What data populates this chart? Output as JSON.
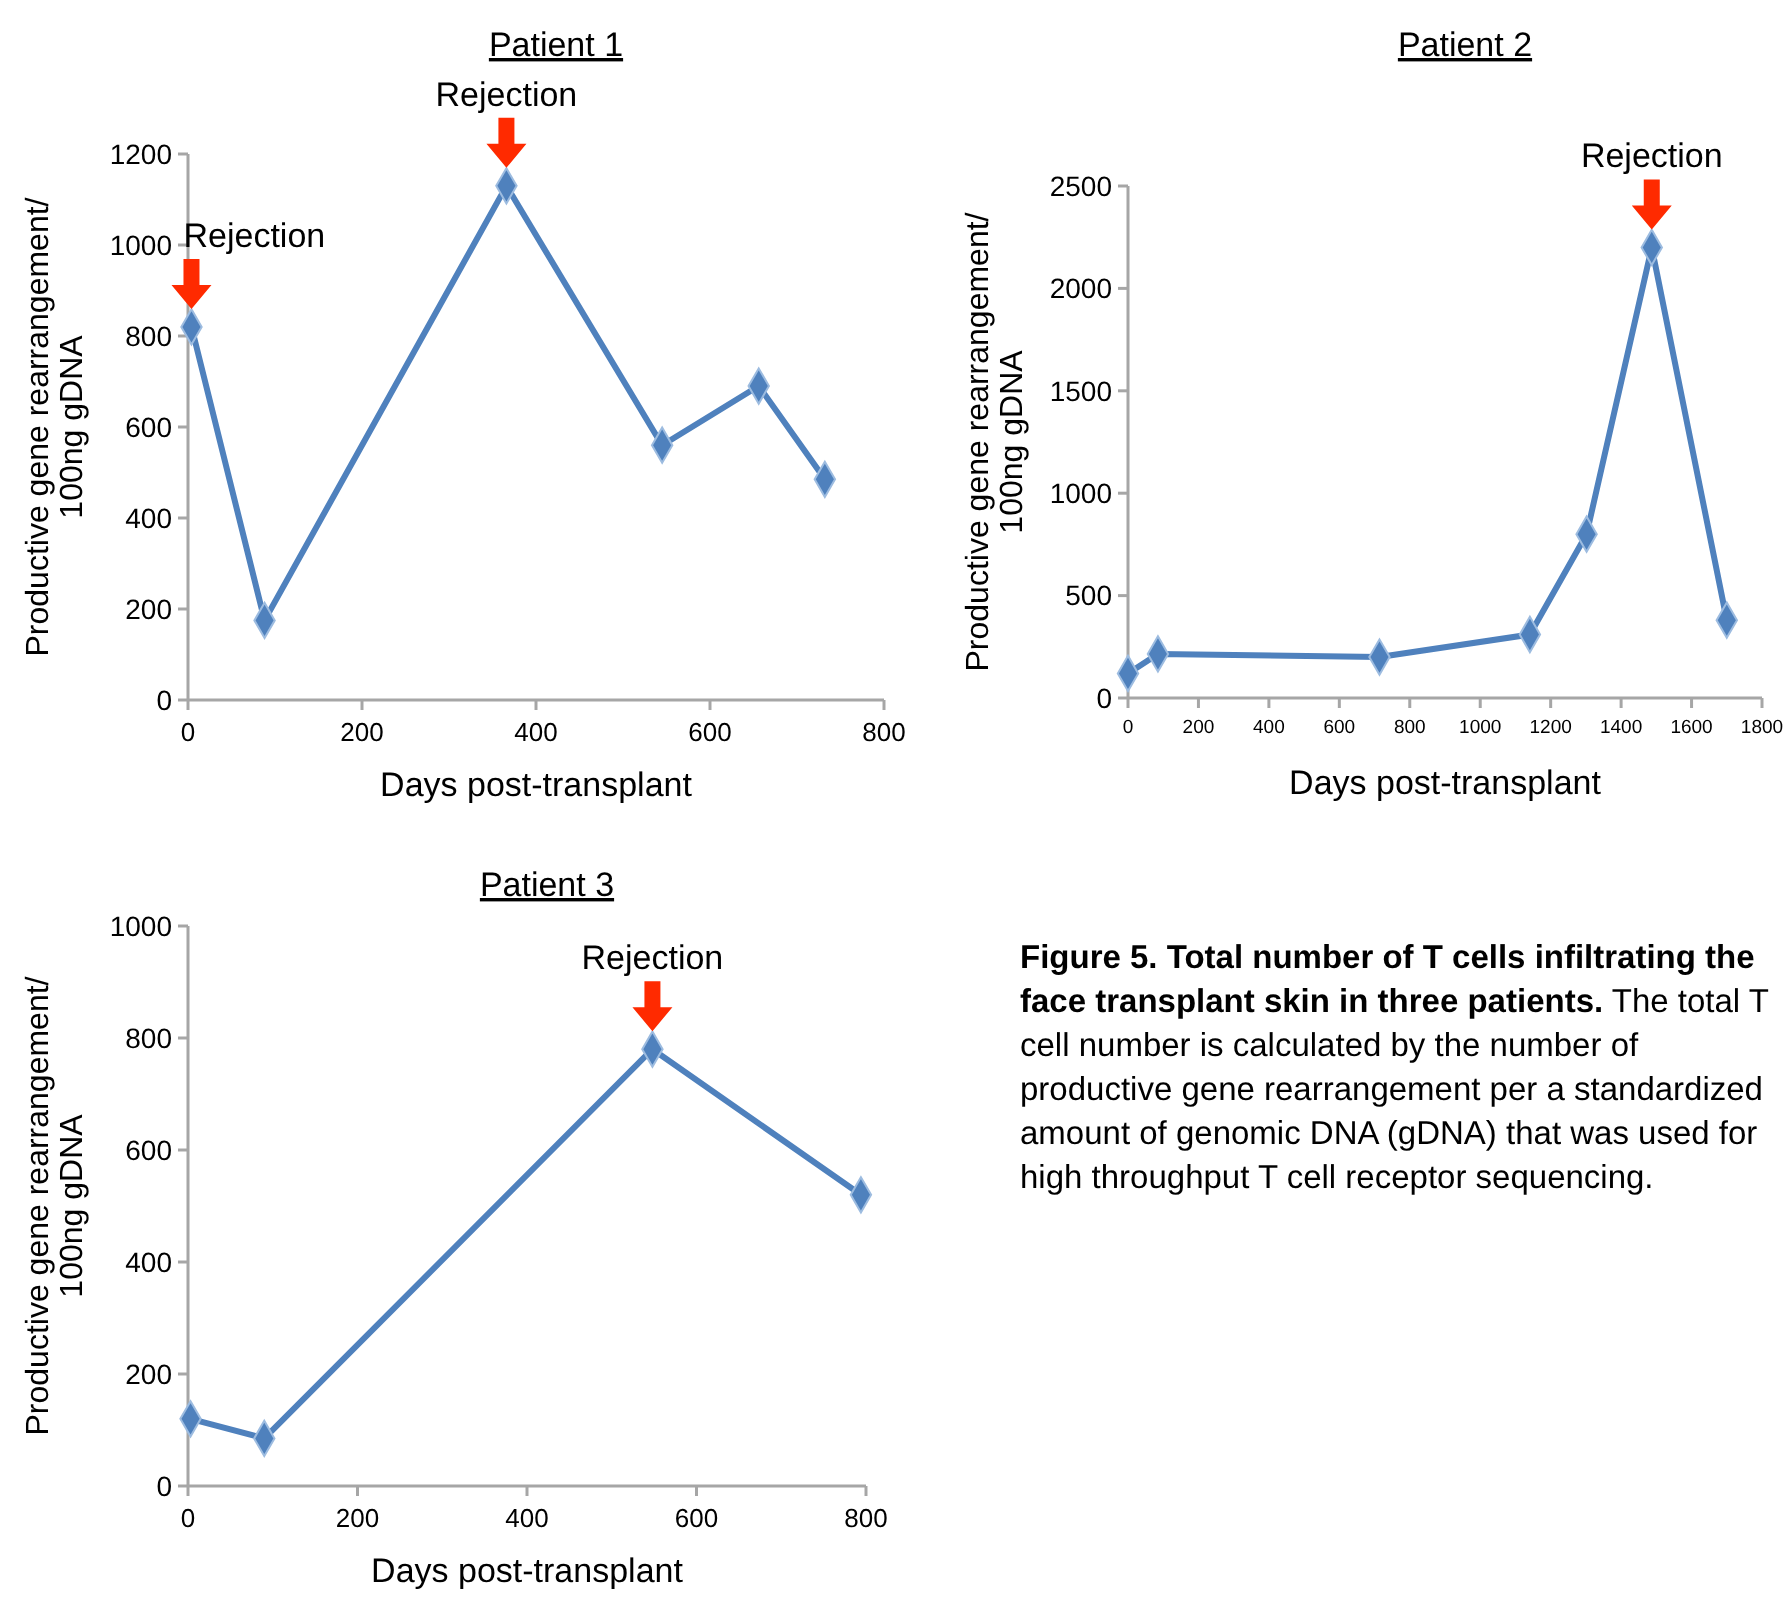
{
  "chart_data": [
    {
      "type": "line",
      "title": "Patient 1",
      "xlabel": "Days post-transplant",
      "ylabel": "Productive gene rearrangement/\n100ng gDNA",
      "marker": "diamond",
      "line_style": "solid",
      "xlim": [
        0,
        800
      ],
      "xticks": [
        0,
        200,
        400,
        600,
        800
      ],
      "ylim": [
        0,
        1200
      ],
      "yticks": [
        0,
        200,
        400,
        600,
        800,
        1000,
        1200
      ],
      "x": [
        4,
        88,
        366,
        545,
        656,
        732
      ],
      "series": [
        {
          "color": "#4f81bd",
          "values": [
            820,
            175,
            1130,
            560,
            690,
            485
          ]
        }
      ],
      "annotations": [
        {
          "text": "Rejection",
          "x": 4,
          "y": 820
        },
        {
          "text": "Rejection",
          "x": 366,
          "y": 1130
        }
      ]
    },
    {
      "type": "line",
      "title": "Patient 2",
      "xlabel": "Days post-transplant",
      "ylabel": "Productive gene rearrangement/\n100ng gDNA",
      "marker": "diamond",
      "line_style": "solid",
      "xlim": [
        0,
        1800
      ],
      "xticks": [
        0,
        200,
        400,
        600,
        800,
        1000,
        1200,
        1400,
        1600,
        1800
      ],
      "ylim": [
        0,
        2500
      ],
      "yticks": [
        0,
        500,
        1000,
        1500,
        2000,
        2500
      ],
      "x": [
        0,
        85,
        714,
        1141,
        1302,
        1487,
        1700
      ],
      "series": [
        {
          "color": "#4f81bd",
          "values": [
            120,
            215,
            200,
            310,
            800,
            2200,
            380
          ]
        }
      ],
      "annotations": [
        {
          "text": "Rejection",
          "x": 1487,
          "y": 2200
        }
      ]
    },
    {
      "type": "line",
      "title": "Patient 3",
      "xlabel": "Days post-transplant",
      "ylabel": "Productive gene rearrangement/\n100ng gDNA",
      "marker": "diamond",
      "line_style": "solid",
      "xlim": [
        0,
        800
      ],
      "xticks": [
        0,
        200,
        400,
        600,
        800
      ],
      "ylim": [
        0,
        1000
      ],
      "yticks": [
        0,
        200,
        400,
        600,
        800,
        1000
      ],
      "x": [
        3,
        90,
        548,
        794
      ],
      "series": [
        {
          "color": "#4f81bd",
          "values": [
            120,
            85,
            780,
            520
          ]
        }
      ],
      "annotations": [
        {
          "text": "Rejection",
          "x": 548,
          "y": 780
        }
      ]
    },
    {
      "type": "other",
      "title": "Figure 5. Total number of T cells infiltrating the face transplant skin in three patients.",
      "annotations": [
        "The total T cell number is calculated by the number of productive gene rearrangement per a standardized amount of genomic DNA (gDNA) that was used for high throughput T cell receptor sequencing."
      ]
    }
  ]
}
